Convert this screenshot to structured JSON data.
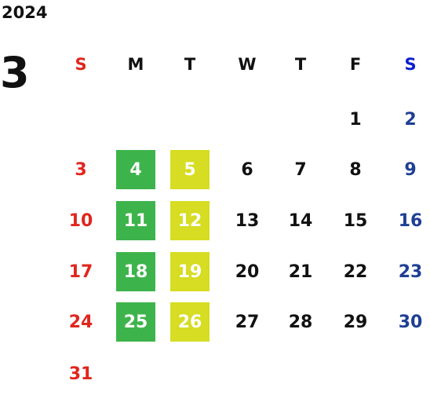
{
  "header": {
    "year": "2024",
    "month": "3"
  },
  "weekdays": [
    "S",
    "M",
    "T",
    "W",
    "T",
    "F",
    "S"
  ],
  "weeks": [
    [
      null,
      null,
      null,
      null,
      null,
      1,
      2
    ],
    [
      3,
      4,
      5,
      6,
      7,
      8,
      9
    ],
    [
      10,
      11,
      12,
      13,
      14,
      15,
      16
    ],
    [
      17,
      18,
      19,
      20,
      21,
      22,
      23
    ],
    [
      24,
      25,
      26,
      27,
      28,
      29,
      30
    ],
    [
      31,
      null,
      null,
      null,
      null,
      null,
      null
    ]
  ]
}
